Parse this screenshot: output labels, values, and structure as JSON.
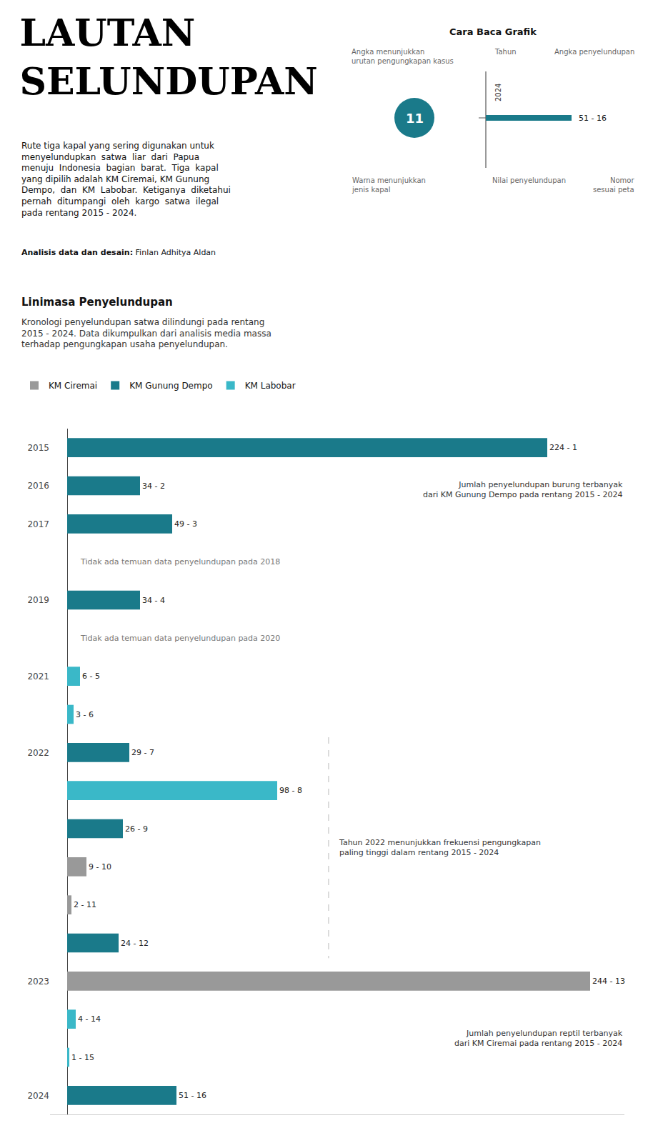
{
  "chart_data": {
    "type": "bar",
    "orientation": "horizontal",
    "title": "LAUTAN\nSELUNDUPAN",
    "subtitle": "Rute tiga kapal yang sering digunakan untuk\nmenyelundupkan  satwa  liar  dari  Papua\nmenuju  Indonesia  bagian  barat.  Tiga  kapal\nyang dipilih adalah KM Ciremai, KM Gunung\nDempo,  dan  KM  Labobar.  Ketiganya  diketahui\npernah  ditumpangi  oleh  kargo  satwa  ilegal\npada rentang 2015 - 2024.",
    "categories": [
      "2015",
      "2016",
      "2017",
      null,
      "2019",
      null,
      "2021",
      null,
      "2022",
      null,
      null,
      null,
      null,
      null,
      "2023",
      null,
      null,
      "2024"
    ],
    "series": [
      {
        "name": "KM Ciremai",
        "color": "#999999",
        "values": [
          null,
          null,
          null,
          null,
          null,
          null,
          null,
          null,
          null,
          null,
          null,
          9,
          2,
          null,
          244,
          null,
          null,
          null
        ],
        "value_labels": [
          null,
          null,
          null,
          null,
          null,
          null,
          null,
          null,
          null,
          null,
          null,
          "9 - 10",
          "2 - 11",
          null,
          "244 - 13",
          null,
          null,
          null
        ]
      },
      {
        "name": "KM Gunung Dempo",
        "color": "#1a7a8a",
        "values": [
          224,
          34,
          49,
          null,
          34,
          null,
          null,
          null,
          29,
          null,
          26,
          null,
          null,
          24,
          null,
          null,
          null,
          51
        ],
        "value_labels": [
          "224 - 1",
          "34 - 2",
          "49 - 3",
          null,
          "34 - 4",
          null,
          null,
          null,
          "29 - 7",
          null,
          "26 - 9",
          null,
          null,
          "24 - 12",
          null,
          null,
          null,
          "51 - 16"
        ]
      },
      {
        "name": "KM Labobar",
        "color": "#3ab8c8",
        "values": [
          null,
          null,
          null,
          null,
          null,
          null,
          6,
          3,
          null,
          98,
          null,
          null,
          null,
          null,
          null,
          4,
          1,
          null
        ],
        "value_labels": [
          null,
          null,
          null,
          null,
          null,
          null,
          "6 - 5",
          "3 - 6",
          null,
          "98 - 8",
          null,
          null,
          null,
          null,
          null,
          "4 - 14",
          "1 - 15",
          null
        ]
      }
    ],
    "xlim": [
      -8,
      260
    ],
    "tick_labels": "y",
    "grid": false,
    "data_labels": true,
    "legend": "top left",
    "annotations": [
      "Analisis data dan desain:",
      " Finlan Adhitya Aldan",
      "Cara Baca Grafik",
      "Angka menunjukkan\nurutan pengungkapan kasus",
      "Tahun",
      "Angka penyelundupan",
      "2024",
      "51 - 16",
      "11",
      "Warna menunjukkan\njenis kapal",
      "Nilai penyelundupan",
      "Nomor\nsesuai peta",
      "Linimasa Penyelundupan",
      "Kronologi penyelundupan satwa dilindungi pada rentang\n2015 - 2024. Data dikumpulkan dari analisis media massa\nterhadap pengungkapan usaha penyelundupan.",
      "Tidak ada temuan data penyelundupan pada 2018",
      "Tidak ada temuan data penyelundupan pada 2020",
      "Jumlah penyelundupan burung terbanyak\ndari KM Gunung Dempo pada rentang 2015 - 2024",
      "Tahun 2022 menunjukkan frekuensi pengungkapan\npaling tinggi dalam rentang 2015 - 2024",
      "Jumlah penyelundupan reptil terbanyak\ndari KM Ciremai pada rentang 2015 - 2024"
    ]
  }
}
